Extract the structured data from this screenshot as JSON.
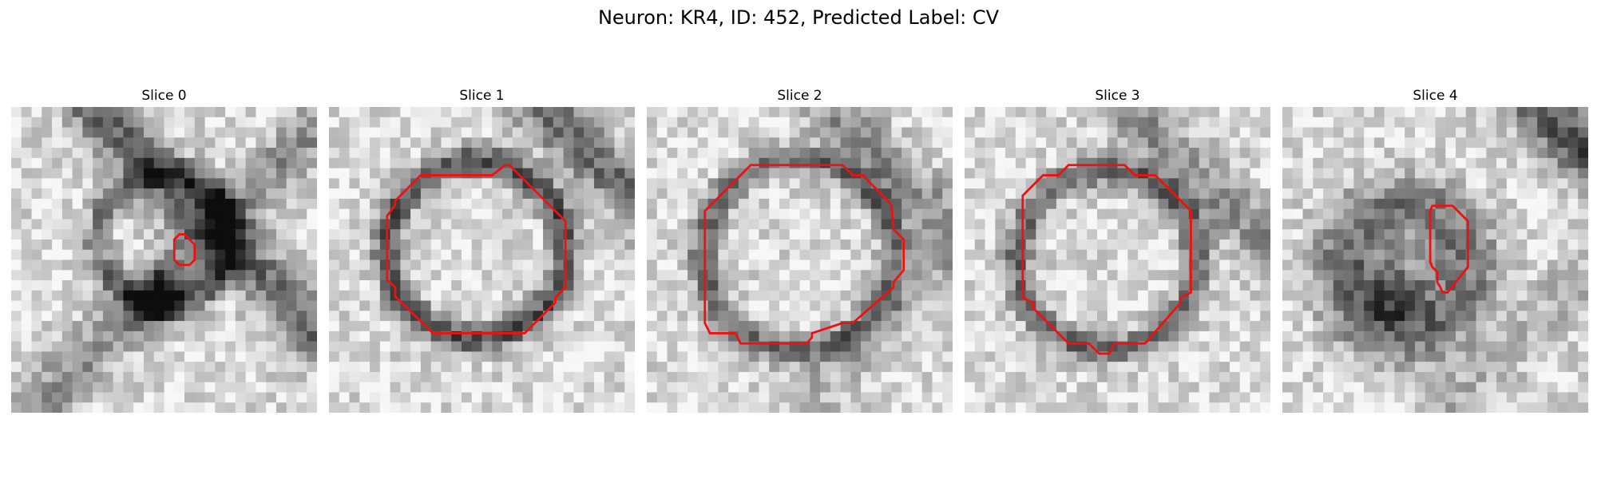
{
  "figure": {
    "title": "Neuron: KR4, ID: 452, Predicted Label: CV"
  },
  "colors": {
    "contour": "#ee1111",
    "background": "#ffffff",
    "image_colormap": "grayscale"
  },
  "panels": [
    {
      "title": "Slice 0"
    },
    {
      "title": "Slice 1"
    },
    {
      "title": "Slice 2"
    },
    {
      "title": "Slice 3"
    },
    {
      "title": "Slice 4"
    }
  ]
}
